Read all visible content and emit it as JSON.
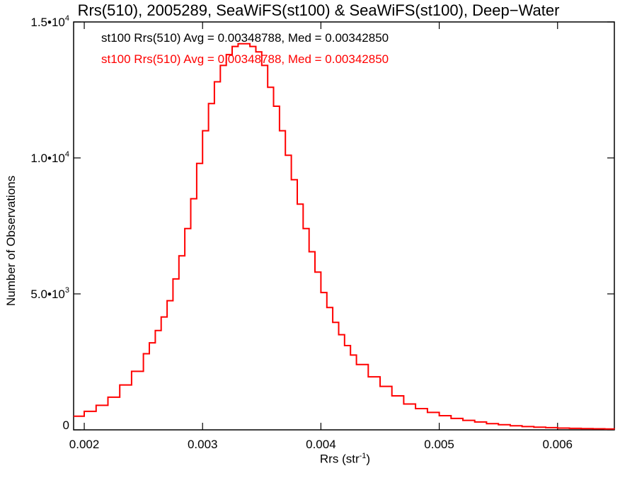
{
  "chart_data": {
    "type": "line",
    "title": "Rrs(510), 2005289, SeaWiFS(st100) & SeaWiFS(st100), Deep−Water",
    "xlabel": "Rrs (str",
    "xlabel_sup": "-1",
    "xlabel_close": ")",
    "ylabel": "Number of Observations",
    "xlim": [
      0.00191,
      0.00648
    ],
    "ylim": [
      0,
      15000
    ],
    "x_ticks": [
      {
        "value": 0.002,
        "label": "0.002"
      },
      {
        "value": 0.003,
        "label": "0.003"
      },
      {
        "value": 0.004,
        "label": "0.004"
      },
      {
        "value": 0.005,
        "label": "0.005"
      },
      {
        "value": 0.006,
        "label": "0.006"
      }
    ],
    "y_ticks": [
      {
        "value": 0,
        "label": "0",
        "sup": ""
      },
      {
        "value": 5000,
        "label": "5.0•10",
        "sup": "3"
      },
      {
        "value": 10000,
        "label": "1.0•10",
        "sup": "4"
      },
      {
        "value": 15000,
        "label": "1.5•10",
        "sup": "4"
      }
    ],
    "annotations": [
      {
        "text": "st100 Rrs(510) Avg = 0.00348788, Med = 0.00342850",
        "color": "#000000"
      },
      {
        "text": "st100 Rrs(510) Avg = 0.00348788, Med = 0.00342850",
        "color": "#ff0000"
      }
    ],
    "series": [
      {
        "color": "#ff0000",
        "style": "step",
        "points": [
          [
            0.00191,
            500
          ],
          [
            0.002,
            680
          ],
          [
            0.0021,
            900
          ],
          [
            0.0022,
            1200
          ],
          [
            0.0023,
            1650
          ],
          [
            0.0024,
            2150
          ],
          [
            0.0025,
            2800
          ],
          [
            0.00255,
            3200
          ],
          [
            0.0026,
            3650
          ],
          [
            0.00265,
            4150
          ],
          [
            0.0027,
            4750
          ],
          [
            0.00275,
            5550
          ],
          [
            0.0028,
            6400
          ],
          [
            0.00285,
            7400
          ],
          [
            0.0029,
            8500
          ],
          [
            0.00295,
            9800
          ],
          [
            0.003,
            11000
          ],
          [
            0.00305,
            12000
          ],
          [
            0.0031,
            12800
          ],
          [
            0.00315,
            13400
          ],
          [
            0.0032,
            13800
          ],
          [
            0.00325,
            14100
          ],
          [
            0.0033,
            14200
          ],
          [
            0.00335,
            14200
          ],
          [
            0.0034,
            14100
          ],
          [
            0.00345,
            13900
          ],
          [
            0.0035,
            13400
          ],
          [
            0.00355,
            12600
          ],
          [
            0.0036,
            11900
          ],
          [
            0.00365,
            11000
          ],
          [
            0.0037,
            10100
          ],
          [
            0.00375,
            9200
          ],
          [
            0.0038,
            8300
          ],
          [
            0.00385,
            7400
          ],
          [
            0.0039,
            6550
          ],
          [
            0.00395,
            5800
          ],
          [
            0.004,
            5050
          ],
          [
            0.00405,
            4500
          ],
          [
            0.0041,
            3950
          ],
          [
            0.00415,
            3500
          ],
          [
            0.0042,
            3100
          ],
          [
            0.00425,
            2750
          ],
          [
            0.0043,
            2400
          ],
          [
            0.0044,
            1950
          ],
          [
            0.0045,
            1600
          ],
          [
            0.0046,
            1250
          ],
          [
            0.0047,
            950
          ],
          [
            0.0048,
            780
          ],
          [
            0.0049,
            640
          ],
          [
            0.005,
            520
          ],
          [
            0.0051,
            420
          ],
          [
            0.0052,
            350
          ],
          [
            0.0053,
            290
          ],
          [
            0.0054,
            230
          ],
          [
            0.0055,
            190
          ],
          [
            0.0056,
            150
          ],
          [
            0.0057,
            120
          ],
          [
            0.0058,
            100
          ],
          [
            0.0059,
            80
          ],
          [
            0.006,
            65
          ],
          [
            0.0061,
            55
          ],
          [
            0.0062,
            45
          ],
          [
            0.0063,
            38
          ],
          [
            0.0064,
            30
          ],
          [
            0.00648,
            25
          ]
        ]
      }
    ]
  }
}
